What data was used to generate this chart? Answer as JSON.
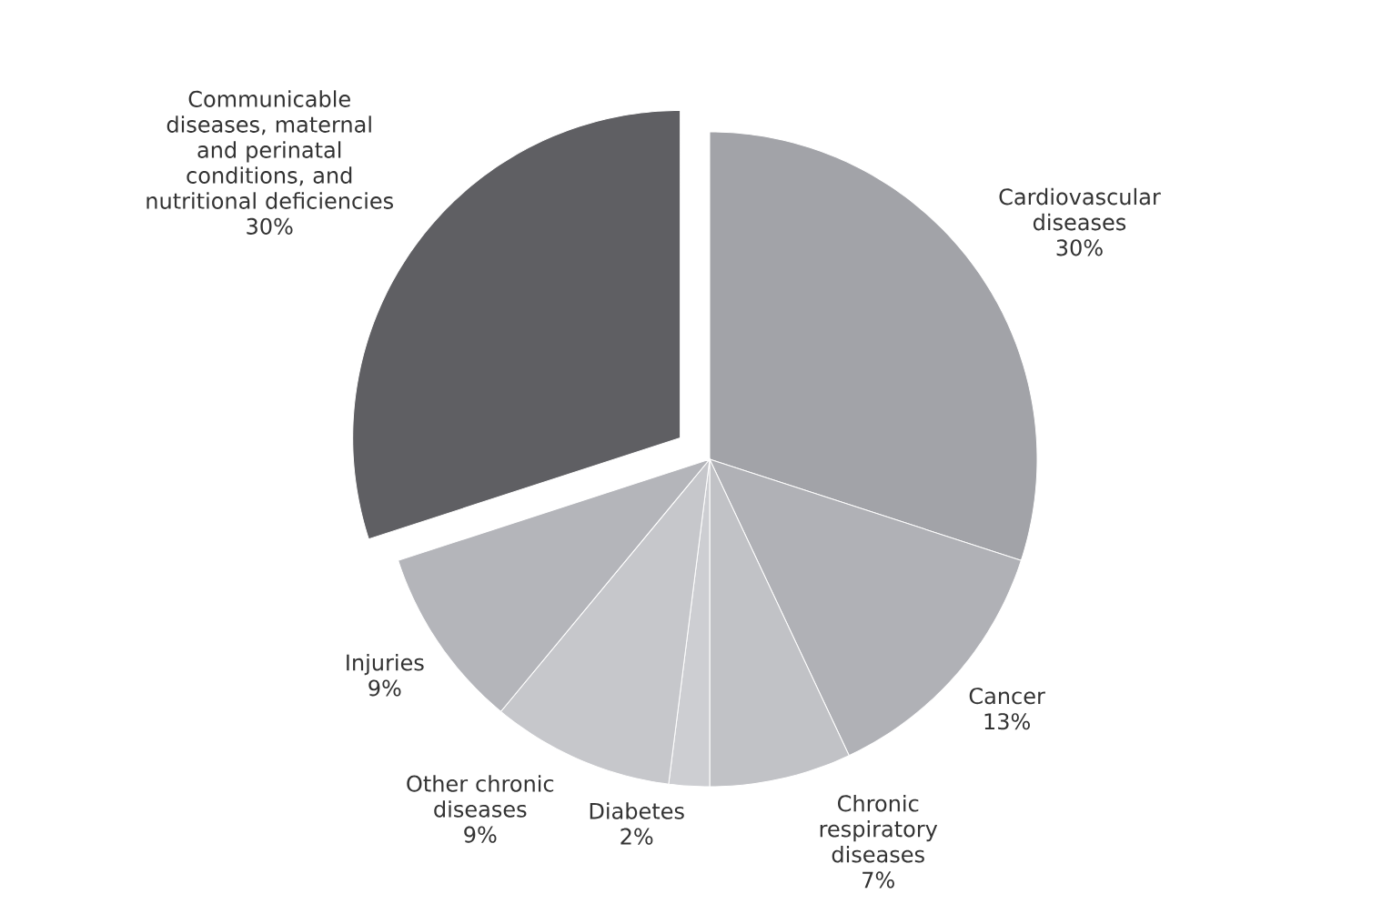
{
  "chart_data": {
    "type": "pie",
    "categories": [
      "Cardiovascular diseases",
      "Cancer",
      "Chronic respiratory diseases",
      "Diabetes",
      "Other chronic diseases",
      "Injuries",
      "Communicable diseases, maternal and perinatal conditions, and nutritional deficiencies"
    ],
    "values": [
      30,
      13,
      7,
      2,
      9,
      9,
      30
    ],
    "value_labels": [
      "30%",
      "13%",
      "7%",
      "2%",
      "9%",
      "9%",
      "30%"
    ],
    "colors": [
      "#a2a3a8",
      "#b0b1b6",
      "#c1c2c6",
      "#cdced2",
      "#c6c7cb",
      "#b4b5ba",
      "#5f5f63"
    ]
  }
}
